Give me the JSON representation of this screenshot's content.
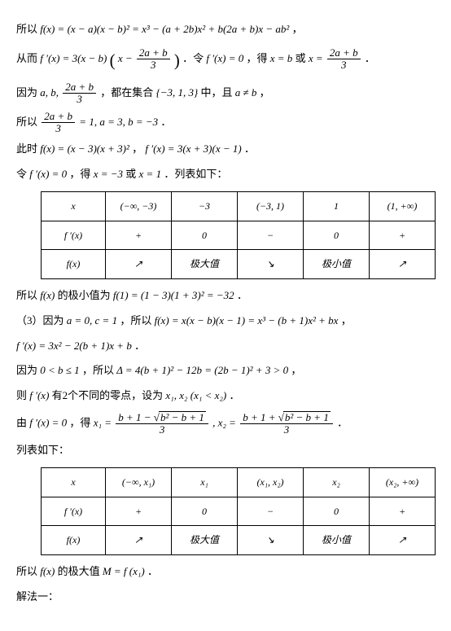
{
  "text": {
    "l1a": "所以 ",
    "l1b": " ，",
    "l2a": "从而 ",
    "l2b": " ．令 ",
    "l2c": "，得 ",
    "l2d": " 或 ",
    "l2e": " ．",
    "l3a": "因为 ",
    "l3b": "，都在集合 ",
    "l3c": " 中，且 ",
    "l3d": " ，",
    "l4a": "所以 ",
    "l4b": " ．",
    "l5a": "此时 ",
    "l5b": " ，",
    "l5c": " ．",
    "l6a": "令 ",
    "l6b": "，得 ",
    "l6c": " 或 ",
    "l6d": " ．列表如下：",
    "l7a": "所以 ",
    "l7b": " 的极小值为 ",
    "l7c": " ．",
    "l8a": "（3）因为 ",
    "l8b": "，所以 ",
    "l8c": " ，",
    "l9a": " ．",
    "l10a": "因为 ",
    "l10b": "，所以 ",
    "l10c": " ，",
    "l11a": "则 ",
    "l11b": " 有2个不同的零点，设为 ",
    "l11c": " ．",
    "l12a": "由 ",
    "l12b": "，得 ",
    "l12c": " ．",
    "l13": "列表如下：",
    "l14a": "所以 ",
    "l14b": " 的极大值 ",
    "l14c": " ．",
    "l15": "解法一："
  },
  "math": {
    "eq1": "f(x) = (x − a)(x − b)² = x³ − (a + 2b)x² + b(2a + b)x − ab²",
    "eq2a": "f ′(x) = 3(x − b)",
    "eq2paren_l": "(",
    "eq2mid": "x − ",
    "eq2paren_r": ")",
    "frac2_num": "2a + b",
    "frac2_den": "3",
    "eq2c": "f ′(x) = 0",
    "eq2d": "x = b",
    "eq2e": "x = ",
    "eq3a": "a, b, ",
    "set1": "{−3, 1, 3}",
    "neq": "a ≠ b",
    "eq4_lhs_num": "2a + b",
    "eq4_lhs_den": "3",
    "eq4_rhs": " = 1, a = 3, b = −3",
    "eq5a": "f(x) = (x − 3)(x + 3)²",
    "eq5b": "f ′(x) = 3(x + 3)(x − 1)",
    "eq6a": "f ′(x) = 0",
    "eq6b": "x = −3",
    "eq6c": "x = 1",
    "min1": "f(1) = (1 − 3)(1 + 3)² = −32",
    "fx": "f(x)",
    "eq8a": "a = 0, c = 1",
    "eq8b": "f(x) = x(x − b)(x − 1) = x³ − (b + 1)x² + bx",
    "eq9": "f ′(x) = 3x² − 2(b + 1)x + b",
    "eq10a": "0 < b ≤ 1",
    "eq10b": "Δ = 4(b + 1)² − 12b = (2b − 1)² + 3 > 0",
    "fprime": "f ′(x)",
    "x1x2": "x₁, x₂ (x₁ < x₂)",
    "eq12a": "f ′(x) = 0",
    "x1eq": "x₁ = ",
    "comma": " , ",
    "x2eq": "x₂ = ",
    "root_num_a": "b + 1 − ",
    "root_num_b": "b + 1 + ",
    "root_rad": "b² − b + 1",
    "root_den": "3",
    "maxM": "M = f (x₁)"
  },
  "table1": {
    "headers": [
      "x",
      "(−∞, −3)",
      "−3",
      "(−3, 1)",
      "1",
      "(1, +∞)"
    ],
    "r1_label": "f ′(x)",
    "r1": [
      "+",
      "0",
      "−",
      "0",
      "+"
    ],
    "r2_label": "f(x)",
    "r2": [
      "↗",
      "极大值",
      "↘",
      "极小值",
      "↗"
    ]
  },
  "table2": {
    "headers": [
      "x",
      "(−∞, x₁)",
      "x₁",
      "(x₁, x₂)",
      "x₂",
      "(x₂, +∞)"
    ],
    "r1_label": "f ′(x)",
    "r1": [
      "+",
      "0",
      "−",
      "0",
      "+"
    ],
    "r2_label": "f(x)",
    "r2": [
      "↗",
      "极大值",
      "↘",
      "极小值",
      "↗"
    ]
  }
}
